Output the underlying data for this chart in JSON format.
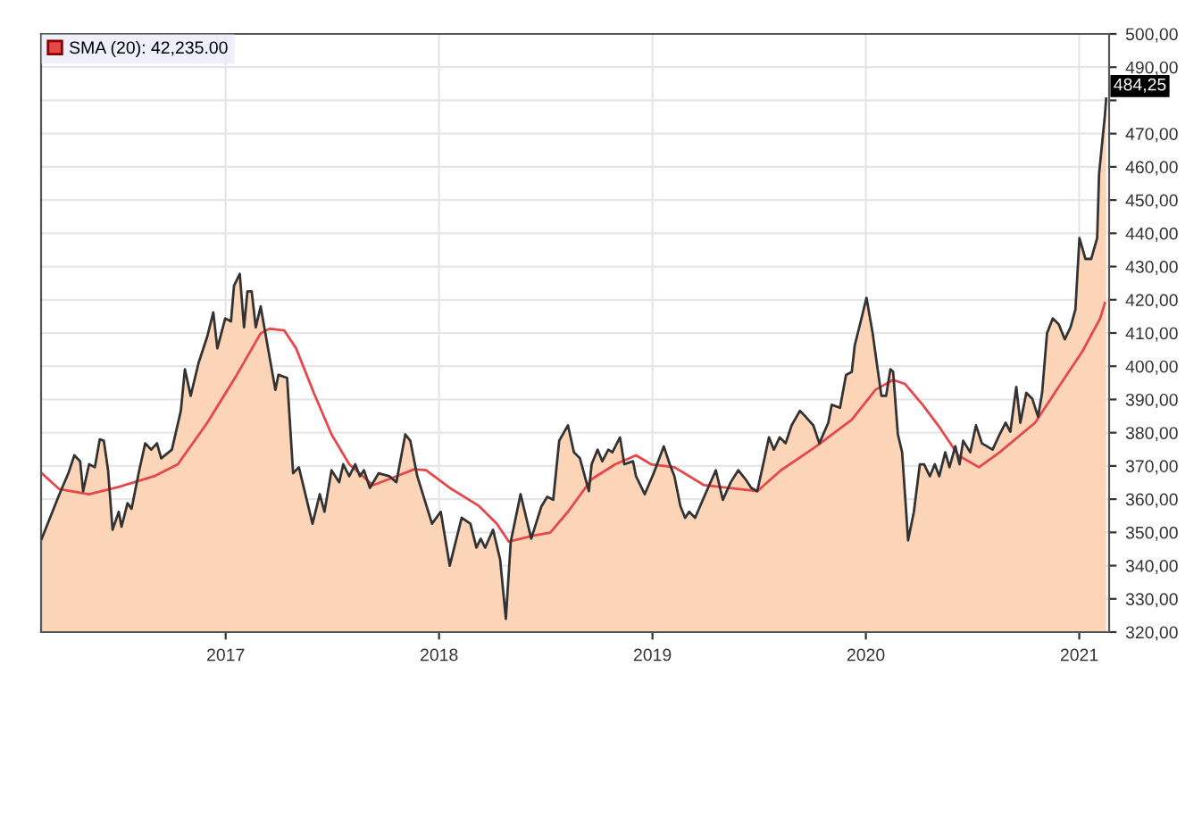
{
  "chart_data": {
    "type": "area",
    "xlim": [
      2016.135,
      2021.14
    ],
    "xticks": [
      2017,
      2018,
      2019,
      2020,
      2021
    ],
    "ylim": [
      320,
      500
    ],
    "yticks": [
      {
        "value": 320,
        "label": "320,00"
      },
      {
        "value": 330,
        "label": "330,00"
      },
      {
        "value": 340,
        "label": "340,00"
      },
      {
        "value": 350,
        "label": "350,00"
      },
      {
        "value": 360,
        "label": "360,00"
      },
      {
        "value": 370,
        "label": "370,00"
      },
      {
        "value": 380,
        "label": "380,00"
      },
      {
        "value": 390,
        "label": "390,00"
      },
      {
        "value": 400,
        "label": "400,00"
      },
      {
        "value": 410,
        "label": "410,00"
      },
      {
        "value": 420,
        "label": "420,00"
      },
      {
        "value": 430,
        "label": "430,00"
      },
      {
        "value": 440,
        "label": "440,00"
      },
      {
        "value": 450,
        "label": "450,00"
      },
      {
        "value": 460,
        "label": "460,00"
      },
      {
        "value": 470,
        "label": "470,00"
      },
      {
        "value": 480,
        "label": null
      },
      {
        "value": 490,
        "label": "490,00"
      },
      {
        "value": 500,
        "label": "500,00"
      }
    ],
    "grid": true,
    "legend": "top left",
    "annotations": [
      "484,25"
    ],
    "series": [
      {
        "color": "#fcd5b9",
        "x": [
          2016.138,
          2016.221,
          2016.263,
          2016.291,
          2016.318,
          2016.332,
          2016.36,
          2016.387,
          2016.41,
          2016.429,
          2016.449,
          2016.47,
          2016.499,
          2016.512,
          2016.54,
          2016.559,
          2016.595,
          2016.623,
          2016.651,
          2016.678,
          2016.698,
          2016.748,
          2016.79,
          2016.809,
          2016.836,
          2016.873,
          2016.914,
          2016.942,
          2016.961,
          2016.998,
          2017.025,
          2017.039,
          2017.066,
          2017.086,
          2017.102,
          2017.122,
          2017.141,
          2017.164,
          2017.191,
          2017.233,
          2017.247,
          2017.288,
          2017.316,
          2017.343,
          2017.407,
          2017.441,
          2017.463,
          2017.496,
          2017.532,
          2017.551,
          2017.579,
          2017.607,
          2017.629,
          2017.648,
          2017.676,
          2017.717,
          2017.767,
          2017.8,
          2017.842,
          2017.865,
          2017.898,
          2017.967,
          2018.008,
          2018.05,
          2018.106,
          2018.147,
          2018.175,
          2018.195,
          2018.216,
          2018.253,
          2018.286,
          2018.313,
          2018.336,
          2018.382,
          2018.432,
          2018.48,
          2018.507,
          2018.535,
          2018.563,
          2018.604,
          2018.632,
          2018.66,
          2018.702,
          2018.715,
          2018.743,
          2018.765,
          2018.793,
          2018.812,
          2018.848,
          2018.868,
          2018.909,
          2018.923,
          2018.964,
          2019.006,
          2019.053,
          2019.081,
          2019.103,
          2019.131,
          2019.153,
          2019.172,
          2019.2,
          2019.242,
          2019.297,
          2019.33,
          2019.367,
          2019.402,
          2019.436,
          2019.463,
          2019.491,
          2019.519,
          2019.546,
          2019.569,
          2019.596,
          2019.624,
          2019.652,
          2019.691,
          2019.718,
          2019.754,
          2019.782,
          2019.824,
          2019.84,
          2019.879,
          2019.907,
          2019.934,
          2019.948,
          2019.976,
          2020.003,
          2020.032,
          2020.051,
          2020.073,
          2020.095,
          2020.115,
          2020.128,
          2020.15,
          2020.17,
          2020.198,
          2020.225,
          2020.253,
          2020.273,
          2020.3,
          2020.323,
          2020.344,
          2020.372,
          2020.392,
          2020.419,
          2020.439,
          2020.456,
          2020.489,
          2020.516,
          2020.544,
          2020.594,
          2020.627,
          2020.655,
          2020.677,
          2020.705,
          2020.724,
          2020.752,
          2020.78,
          2020.807,
          2020.826,
          2020.849,
          2020.876,
          2020.904,
          2020.932,
          2020.959,
          2020.982,
          2021.001,
          2021.029,
          2021.056,
          2021.084,
          2021.093,
          2021.121,
          2021.126
        ],
        "values": [
          348.1,
          361.5,
          367.8,
          373.2,
          371.4,
          362.4,
          370.5,
          369.6,
          378,
          377.6,
          368.7,
          350.8,
          356.2,
          351.7,
          358.8,
          357.1,
          368.7,
          376.8,
          374.9,
          376.8,
          372.3,
          374.9,
          386.6,
          399.1,
          391.1,
          401,
          409,
          416.2,
          405.4,
          414.4,
          413.5,
          424.2,
          427.8,
          411.7,
          422.5,
          422.5,
          411.7,
          418,
          408.1,
          392.9,
          397.4,
          396.5,
          367.8,
          369.6,
          352.6,
          361.5,
          356.2,
          368.7,
          365.1,
          370.5,
          366.9,
          370.5,
          366.9,
          368.7,
          363.4,
          367.8,
          366.9,
          365.1,
          379.5,
          377.6,
          366.9,
          352.6,
          356.2,
          340,
          354.4,
          352.6,
          345.4,
          348.1,
          345.4,
          350.8,
          341.9,
          324,
          347.2,
          361.5,
          348.1,
          357.9,
          360.7,
          359.8,
          377.6,
          382.2,
          374.1,
          372.3,
          362.4,
          370.5,
          374.9,
          371.4,
          374.9,
          374.1,
          378.6,
          370.5,
          371.4,
          366.9,
          361.5,
          367.8,
          375.9,
          370.5,
          366.9,
          357.9,
          354.4,
          356.2,
          354.4,
          360.7,
          368.7,
          359.8,
          365.1,
          368.7,
          366,
          363.4,
          362.4,
          370.5,
          378.6,
          374.9,
          378.6,
          376.8,
          382.2,
          386.6,
          384.8,
          382.2,
          376.8,
          383,
          388.4,
          387.5,
          397.4,
          398.3,
          406.3,
          413.5,
          420.6,
          409.9,
          401,
          391.1,
          391.1,
          399.1,
          398.3,
          379.5,
          374.1,
          347.6,
          356.2,
          370.5,
          370.5,
          366.9,
          370.5,
          366.9,
          374.1,
          369.6,
          375.9,
          370.5,
          377.6,
          374.1,
          382.2,
          376.8,
          374.9,
          379.5,
          383,
          380.3,
          393.8,
          383,
          392,
          390.2,
          384.8,
          392,
          409.9,
          414.4,
          412.6,
          408.1,
          411.7,
          417.1,
          438.6,
          432.3,
          432.3,
          438.6,
          458,
          476,
          480.5
        ]
      },
      {
        "type": "line",
        "name": "SMA (20): 42,235.00",
        "color": "#e8474a",
        "x": [
          2016.138,
          2016.221,
          2016.36,
          2016.499,
          2016.665,
          2016.776,
          2016.914,
          2017.052,
          2017.164,
          2017.205,
          2017.274,
          2017.33,
          2017.413,
          2017.496,
          2017.579,
          2017.69,
          2017.8,
          2017.884,
          2017.939,
          2018.05,
          2018.188,
          2018.271,
          2018.327,
          2018.438,
          2018.521,
          2018.604,
          2018.715,
          2018.826,
          2018.923,
          2018.993,
          2019.103,
          2019.242,
          2019.353,
          2019.491,
          2019.602,
          2019.768,
          2019.934,
          2020.045,
          2020.128,
          2020.183,
          2020.266,
          2020.35,
          2020.433,
          2020.53,
          2020.627,
          2020.793,
          2020.904,
          2021.015,
          2021.098,
          2021.12
        ],
        "values": [
          367.8,
          363,
          361.5,
          363.7,
          366.9,
          370.5,
          383,
          397.4,
          409.9,
          411.3,
          410.8,
          405.4,
          392,
          379.5,
          370.5,
          364.2,
          366.9,
          369,
          368.7,
          363.4,
          357.9,
          352.6,
          347.2,
          349,
          349.9,
          356.2,
          366,
          370.5,
          373.2,
          370.5,
          369.6,
          364.2,
          363.4,
          362.4,
          368.7,
          375.9,
          383.9,
          392.9,
          395.9,
          394.7,
          388.4,
          381.2,
          373.2,
          369.6,
          374.1,
          383,
          393.8,
          404.5,
          414.4,
          419
        ]
      }
    ]
  }
}
